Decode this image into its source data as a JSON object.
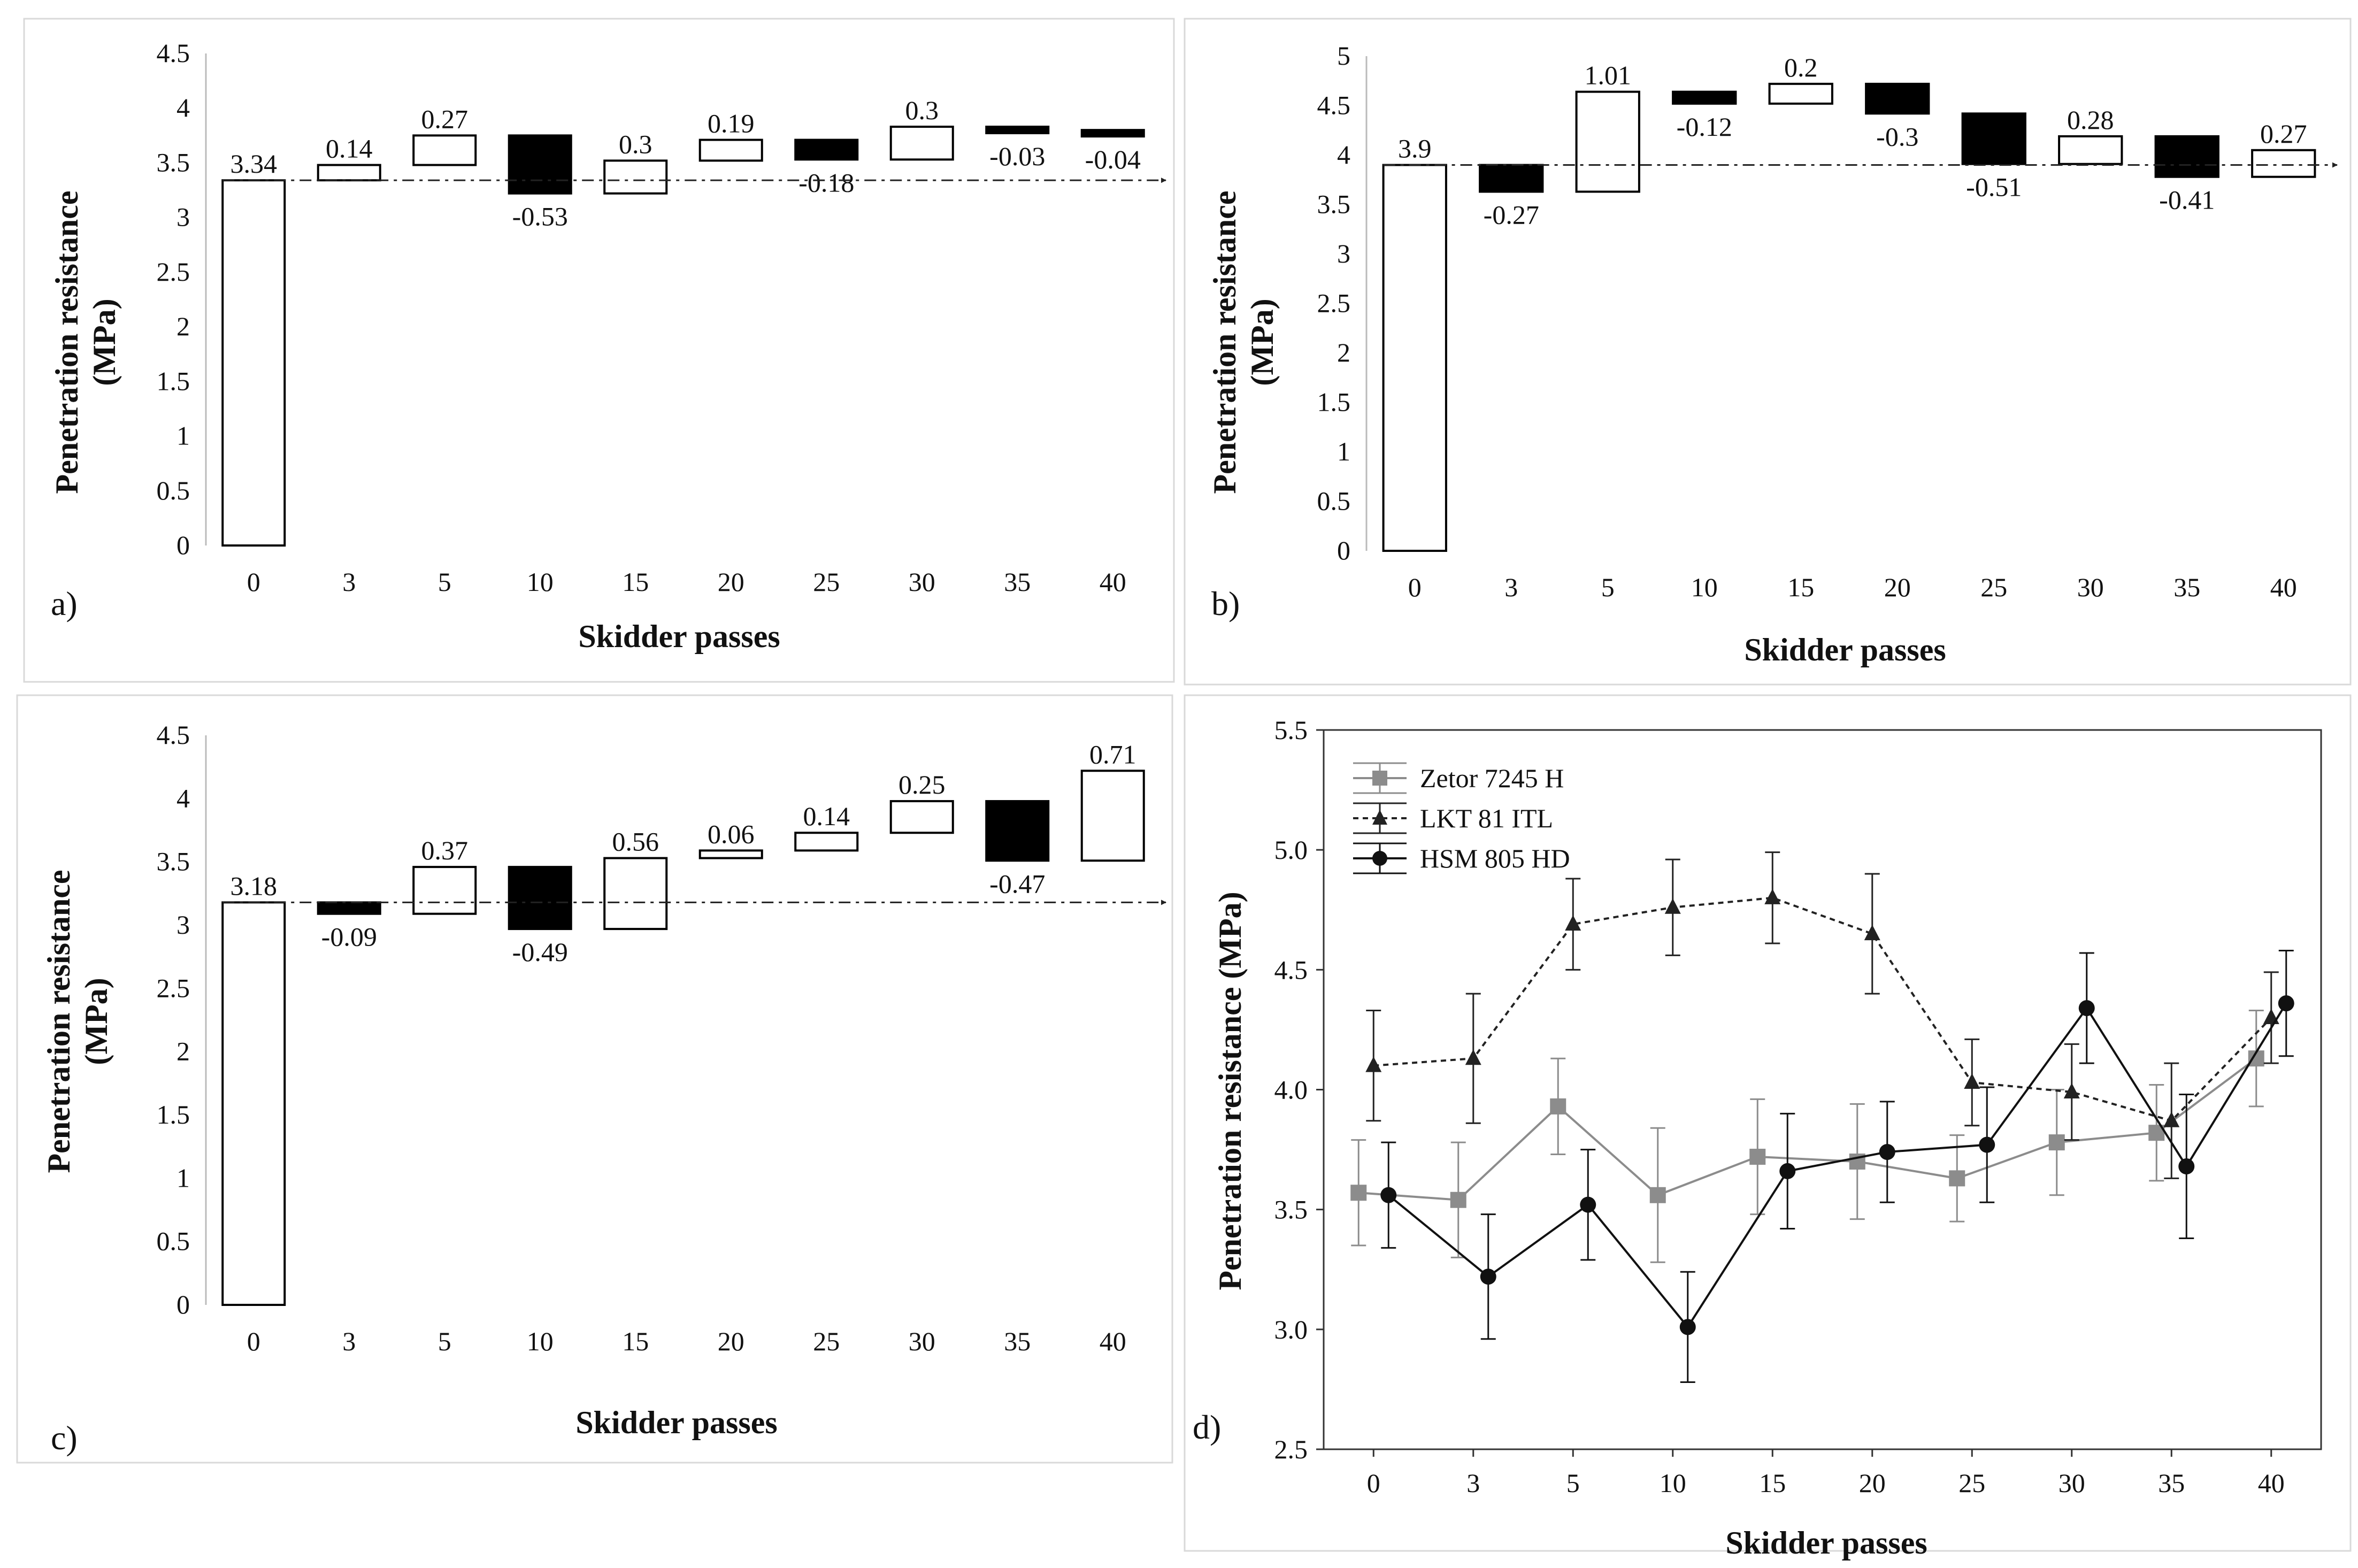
{
  "figure": {
    "panel_labels": [
      "a)",
      "b)",
      "c)",
      "d)"
    ]
  },
  "chart_data": [
    {
      "type": "bar",
      "subtype": "waterfall",
      "panel": "a)",
      "categories": [
        "0",
        "3",
        "5",
        "10",
        "15",
        "20",
        "25",
        "30",
        "35",
        "40"
      ],
      "base_value": 3.34,
      "changes": [
        0.14,
        0.27,
        -0.53,
        0.3,
        0.19,
        -0.18,
        0.3,
        -0.03,
        -0.04
      ],
      "labels": [
        "3.34",
        "0.14",
        "0.27",
        "-0.53",
        "0.3",
        "0.19",
        "-0.18",
        "0.3",
        "-0.03",
        "-0.04"
      ],
      "xlabel": "Skidder passes",
      "ylabel": [
        "Penetration resistance",
        "(MPa)"
      ],
      "ylim": [
        0,
        4.5
      ],
      "yticks": [
        "0",
        "0.5",
        "1",
        "1.5",
        "2",
        "2.5",
        "3",
        "3.5",
        "4",
        "4.5"
      ],
      "reference_line": 3.34
    },
    {
      "type": "bar",
      "subtype": "waterfall",
      "panel": "b)",
      "categories": [
        "0",
        "3",
        "5",
        "10",
        "15",
        "20",
        "25",
        "30",
        "35",
        "40"
      ],
      "base_value": 3.9,
      "changes": [
        -0.27,
        1.01,
        -0.12,
        0.2,
        -0.3,
        -0.51,
        0.28,
        -0.41,
        0.27
      ],
      "labels": [
        "3.9",
        "-0.27",
        "1.01",
        "-0.12",
        "0.2",
        "-0.3",
        "-0.51",
        "0.28",
        "-0.41",
        "0.27"
      ],
      "xlabel": "Skidder passes",
      "ylabel": [
        "Penetration resistance",
        "(MPa)"
      ],
      "ylim": [
        0,
        5
      ],
      "yticks": [
        "0",
        "0.5",
        "1",
        "1.5",
        "2",
        "2.5",
        "3",
        "3.5",
        "4",
        "4.5",
        "5"
      ],
      "reference_line": 3.9
    },
    {
      "type": "bar",
      "subtype": "waterfall",
      "panel": "c)",
      "categories": [
        "0",
        "3",
        "5",
        "10",
        "15",
        "20",
        "25",
        "30",
        "35",
        "40"
      ],
      "base_value": 3.18,
      "changes": [
        -0.09,
        0.37,
        -0.49,
        0.56,
        0.06,
        0.14,
        0.25,
        -0.47,
        0.71
      ],
      "labels": [
        "3.18",
        "-0.09",
        "0.37",
        "-0.49",
        "0.56",
        "0.06",
        "0.14",
        "0.25",
        "-0.47",
        "0.71"
      ],
      "xlabel": "Skidder passes",
      "ylabel": [
        "Penetration resistance",
        "(MPa)"
      ],
      "ylim": [
        0,
        4.5
      ],
      "yticks": [
        "0",
        "0.5",
        "1",
        "1.5",
        "2",
        "2.5",
        "3",
        "3.5",
        "4",
        "4.5"
      ],
      "reference_line": 3.18
    },
    {
      "type": "line",
      "panel": "d)",
      "categories": [
        "0",
        "3",
        "5",
        "10",
        "15",
        "20",
        "25",
        "30",
        "35",
        "40"
      ],
      "xlabel": "Skidder passes",
      "ylabel": "Penetration resistance (MPa)",
      "ylim": [
        2.5,
        5.5
      ],
      "yticks": [
        "2.5",
        "3.0",
        "3.5",
        "4.0",
        "4.5",
        "5.0",
        "5.5"
      ],
      "series": [
        {
          "name": "Zetor 7245 H",
          "color": "#8c8c8c",
          "marker": "square",
          "dash": "solid",
          "values": [
            3.57,
            3.54,
            3.93,
            3.56,
            3.72,
            3.7,
            3.63,
            3.78,
            3.82,
            4.13
          ],
          "errors": [
            0.22,
            0.24,
            0.2,
            0.28,
            0.24,
            0.24,
            0.18,
            0.22,
            0.2,
            0.2
          ]
        },
        {
          "name": "LKT 81 ITL",
          "color": "#222222",
          "marker": "triangle",
          "dash": "dotted",
          "values": [
            4.1,
            4.13,
            4.69,
            4.76,
            4.8,
            4.65,
            4.03,
            3.99,
            3.87,
            4.3
          ],
          "errors": [
            0.23,
            0.27,
            0.19,
            0.2,
            0.19,
            0.25,
            0.18,
            0.2,
            0.24,
            0.19
          ]
        },
        {
          "name": "HSM 805 HD",
          "color": "#111111",
          "marker": "circle",
          "dash": "solid",
          "values": [
            3.56,
            3.22,
            3.52,
            3.01,
            3.66,
            3.74,
            3.77,
            4.34,
            3.68,
            4.36
          ],
          "errors": [
            0.22,
            0.26,
            0.23,
            0.23,
            0.24,
            0.21,
            0.24,
            0.23,
            0.3,
            0.22
          ]
        }
      ]
    }
  ]
}
